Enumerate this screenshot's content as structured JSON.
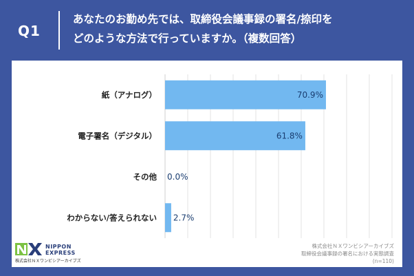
{
  "header": {
    "q_label": "Q1",
    "question_line1": "あなたのお勤め先では、取締役会議事録の署名/捺印を",
    "question_line2": "どのような方法で行っていますか。（複数回答）"
  },
  "chart_data": {
    "type": "bar",
    "orientation": "horizontal",
    "categories": [
      "紙（アナログ）",
      "電子署名（デジタル）",
      "その他",
      "わからない/答えられない"
    ],
    "values": [
      70.9,
      61.8,
      0.0,
      2.7
    ],
    "value_labels": [
      "70.9%",
      "61.8%",
      "0.0%",
      "2.7%"
    ],
    "xlim": [
      0,
      100
    ],
    "grid": true,
    "bar_color": "#72b8f0"
  },
  "logo": {
    "line1": "NIPPON",
    "line2": "EXPRESS",
    "sub": "株式会社ＮＸワンビシアーカイブズ"
  },
  "source": {
    "line1": "株式会社ＮＸワンビシアーカイブズ",
    "line2": "取締役会議事録の署名における実態調査",
    "line3": "(n=110)"
  }
}
